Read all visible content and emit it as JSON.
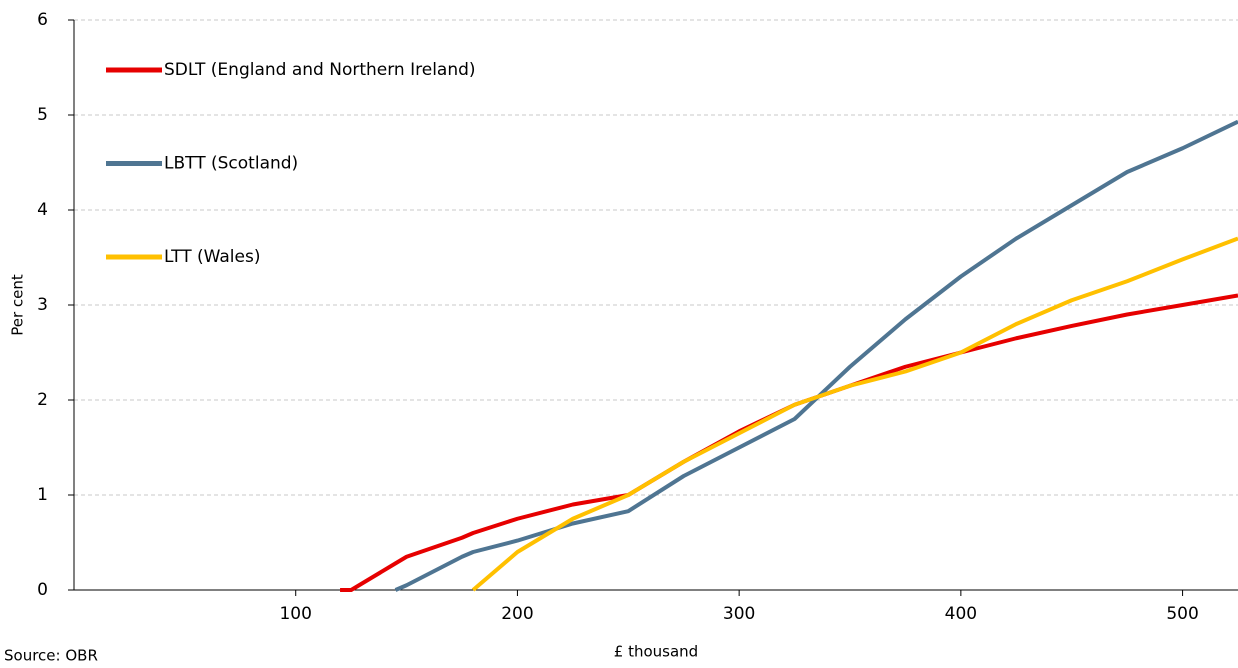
{
  "chart_data": {
    "type": "line",
    "y_label": "Per cent",
    "x_label": "£ thousand",
    "source": "Source: OBR",
    "x": [
      120,
      125,
      145,
      150,
      175,
      180,
      200,
      225,
      250,
      275,
      300,
      325,
      350,
      375,
      400,
      425,
      450,
      475,
      500,
      525
    ],
    "series": [
      {
        "name": "SDLT (England and Northern Ireland)",
        "color": "#e60000",
        "values": [
          0,
          0,
          0.28,
          0.35,
          0.55,
          0.6,
          0.75,
          0.9,
          1.0,
          1.35,
          1.67,
          1.95,
          2.15,
          2.35,
          2.5,
          2.65,
          2.78,
          2.9,
          3.0,
          3.1
        ]
      },
      {
        "name": "LBTT (Scotland)",
        "color": "#4f7592",
        "values": [
          null,
          null,
          0,
          0.05,
          0.35,
          0.4,
          0.52,
          0.7,
          0.83,
          1.2,
          1.5,
          1.8,
          2.35,
          2.85,
          3.3,
          3.7,
          4.05,
          4.4,
          4.65,
          4.93
        ]
      },
      {
        "name": "LTT (Wales)",
        "color": "#ffc000",
        "values": [
          null,
          null,
          null,
          null,
          null,
          0,
          0.4,
          0.75,
          1.0,
          1.35,
          1.65,
          1.95,
          2.15,
          2.3,
          2.5,
          2.8,
          3.05,
          3.25,
          3.48,
          3.7
        ]
      }
    ],
    "xlim": [
      0,
      525
    ],
    "xticks": [
      100,
      200,
      300,
      400,
      500
    ],
    "ylim": [
      0,
      6
    ],
    "yticks": [
      0,
      1,
      2,
      3,
      4,
      5,
      6
    ],
    "grid": true
  }
}
